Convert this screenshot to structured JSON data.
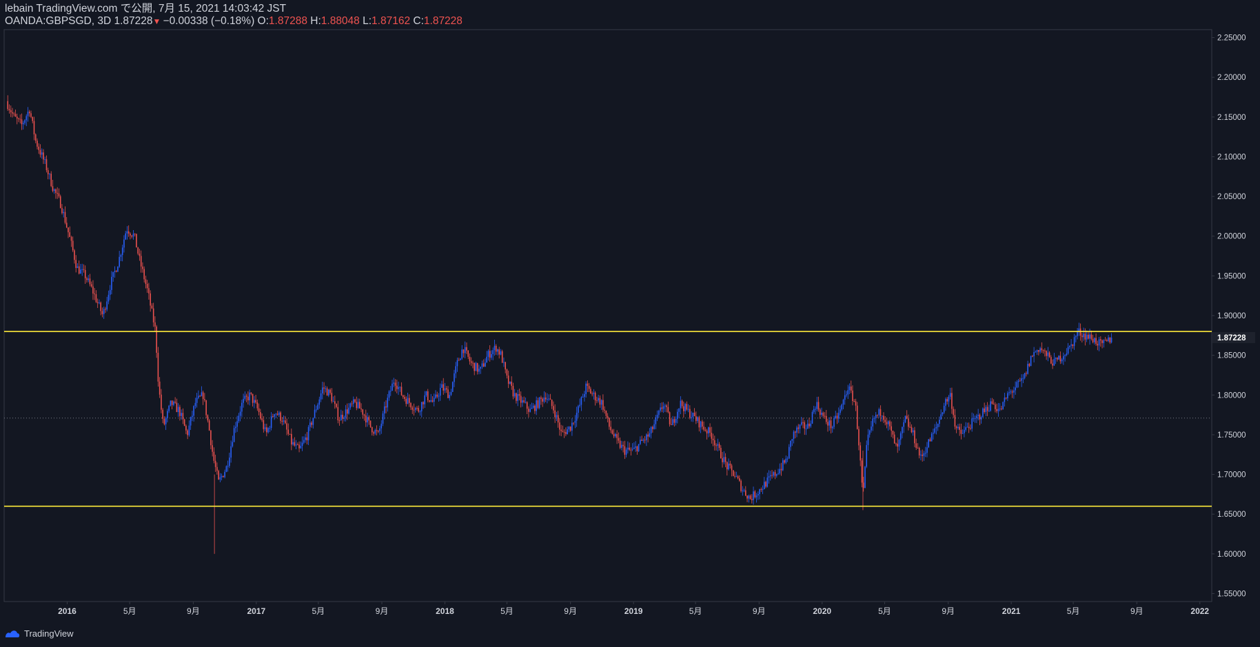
{
  "header": {
    "line1": "lebain TradingView.com で公開, 7月 15, 2021 14:03:42 JST",
    "symbol": "OANDA:GBPSGD, 3D 1.87228",
    "arrow": "▼",
    "change": "−0.00338 (−0.18%)",
    "o_label": "O:",
    "o_value": "1.87288",
    "h_label": "H:",
    "h_value": "1.88048",
    "l_label": "L:",
    "l_value": "1.87162",
    "c_label": "C:",
    "c_value": "1.87228"
  },
  "footer": {
    "brand": "TradingView"
  },
  "colors": {
    "background": "#131722",
    "up": "#2962ff",
    "down": "#ef5350",
    "hline": "#ffeb3b",
    "grid_text": "#d1d4dc",
    "axis_line": "#363a45"
  },
  "chart_data": {
    "type": "candlestick",
    "symbol": "OANDA:GBPSGD",
    "interval": "3D",
    "last_price": "1.87228",
    "ylim": [
      1.54,
      2.26
    ],
    "xlim": [
      "2015-09-01",
      "2022-01-20"
    ],
    "y_ticks": [
      "2.25000",
      "2.20000",
      "2.15000",
      "2.10000",
      "2.05000",
      "2.00000",
      "1.95000",
      "1.90000",
      "1.85000",
      "1.80000",
      "1.75000",
      "1.70000",
      "1.65000",
      "1.60000",
      "1.55000"
    ],
    "x_ticks": [
      {
        "date": "2016-01-01",
        "label": "2016",
        "bold": true
      },
      {
        "date": "2016-05-01",
        "label": "5月",
        "bold": false
      },
      {
        "date": "2016-09-01",
        "label": "9月",
        "bold": false
      },
      {
        "date": "2017-01-01",
        "label": "2017",
        "bold": true
      },
      {
        "date": "2017-05-01",
        "label": "5月",
        "bold": false
      },
      {
        "date": "2017-09-01",
        "label": "9月",
        "bold": false
      },
      {
        "date": "2018-01-01",
        "label": "2018",
        "bold": true
      },
      {
        "date": "2018-05-01",
        "label": "5月",
        "bold": false
      },
      {
        "date": "2018-09-01",
        "label": "9月",
        "bold": false
      },
      {
        "date": "2019-01-01",
        "label": "2019",
        "bold": true
      },
      {
        "date": "2019-05-01",
        "label": "5月",
        "bold": false
      },
      {
        "date": "2019-09-01",
        "label": "9月",
        "bold": false
      },
      {
        "date": "2020-01-01",
        "label": "2020",
        "bold": true
      },
      {
        "date": "2020-05-01",
        "label": "5月",
        "bold": false
      },
      {
        "date": "2020-09-01",
        "label": "9月",
        "bold": false
      },
      {
        "date": "2021-01-01",
        "label": "2021",
        "bold": true
      },
      {
        "date": "2021-05-01",
        "label": "5月",
        "bold": false
      },
      {
        "date": "2021-09-01",
        "label": "9月",
        "bold": false
      },
      {
        "date": "2022-01-01",
        "label": "2022",
        "bold": true
      }
    ],
    "horizontal_lines": [
      1.88,
      1.66
    ],
    "dotted_line": 1.771,
    "close_path": [
      [
        "2015-09-05",
        2.17
      ],
      [
        "2015-09-20",
        2.15
      ],
      [
        "2015-10-05",
        2.14
      ],
      [
        "2015-10-20",
        2.16
      ],
      [
        "2015-11-01",
        2.12
      ],
      [
        "2015-11-20",
        2.09
      ],
      [
        "2015-12-05",
        2.06
      ],
      [
        "2015-12-20",
        2.04
      ],
      [
        "2016-01-05",
        2.0
      ],
      [
        "2016-01-20",
        1.96
      ],
      [
        "2016-02-05",
        1.95
      ],
      [
        "2016-02-20",
        1.93
      ],
      [
        "2016-03-10",
        1.9
      ],
      [
        "2016-03-25",
        1.94
      ],
      [
        "2016-04-10",
        1.97
      ],
      [
        "2016-04-25",
        2.01
      ],
      [
        "2016-05-10",
        2.0
      ],
      [
        "2016-05-20",
        1.97
      ],
      [
        "2016-06-05",
        1.93
      ],
      [
        "2016-06-20",
        1.88
      ],
      [
        "2016-06-26",
        1.81
      ],
      [
        "2016-07-05",
        1.76
      ],
      [
        "2016-07-20",
        1.79
      ],
      [
        "2016-08-05",
        1.78
      ],
      [
        "2016-08-20",
        1.75
      ],
      [
        "2016-09-05",
        1.79
      ],
      [
        "2016-09-20",
        1.8
      ],
      [
        "2016-10-01",
        1.76
      ],
      [
        "2016-10-10",
        1.72
      ],
      [
        "2016-10-20",
        1.69
      ],
      [
        "2016-11-05",
        1.71
      ],
      [
        "2016-11-20",
        1.76
      ],
      [
        "2016-12-05",
        1.79
      ],
      [
        "2016-12-20",
        1.8
      ],
      [
        "2017-01-05",
        1.78
      ],
      [
        "2017-01-20",
        1.75
      ],
      [
        "2017-02-05",
        1.78
      ],
      [
        "2017-02-20",
        1.77
      ],
      [
        "2017-03-10",
        1.74
      ],
      [
        "2017-03-25",
        1.73
      ],
      [
        "2017-04-10",
        1.75
      ],
      [
        "2017-04-25",
        1.78
      ],
      [
        "2017-05-10",
        1.81
      ],
      [
        "2017-05-25",
        1.8
      ],
      [
        "2017-06-10",
        1.77
      ],
      [
        "2017-06-25",
        1.78
      ],
      [
        "2017-07-10",
        1.79
      ],
      [
        "2017-07-25",
        1.78
      ],
      [
        "2017-08-10",
        1.76
      ],
      [
        "2017-08-25",
        1.75
      ],
      [
        "2017-09-10",
        1.79
      ],
      [
        "2017-09-25",
        1.82
      ],
      [
        "2017-10-10",
        1.8
      ],
      [
        "2017-10-25",
        1.79
      ],
      [
        "2017-11-10",
        1.78
      ],
      [
        "2017-11-25",
        1.8
      ],
      [
        "2017-12-10",
        1.79
      ],
      [
        "2017-12-25",
        1.81
      ],
      [
        "2018-01-10",
        1.8
      ],
      [
        "2018-01-25",
        1.84
      ],
      [
        "2018-02-05",
        1.86
      ],
      [
        "2018-02-20",
        1.84
      ],
      [
        "2018-03-10",
        1.83
      ],
      [
        "2018-03-25",
        1.85
      ],
      [
        "2018-04-10",
        1.86
      ],
      [
        "2018-04-20",
        1.85
      ],
      [
        "2018-05-01",
        1.82
      ],
      [
        "2018-05-15",
        1.8
      ],
      [
        "2018-06-01",
        1.79
      ],
      [
        "2018-06-15",
        1.78
      ],
      [
        "2018-07-01",
        1.79
      ],
      [
        "2018-07-15",
        1.8
      ],
      [
        "2018-08-01",
        1.78
      ],
      [
        "2018-08-15",
        1.75
      ],
      [
        "2018-09-01",
        1.76
      ],
      [
        "2018-09-15",
        1.78
      ],
      [
        "2018-10-01",
        1.81
      ],
      [
        "2018-10-15",
        1.8
      ],
      [
        "2018-11-01",
        1.79
      ],
      [
        "2018-11-15",
        1.76
      ],
      [
        "2018-12-01",
        1.74
      ],
      [
        "2018-12-15",
        1.73
      ],
      [
        "2019-01-01",
        1.73
      ],
      [
        "2019-01-15",
        1.74
      ],
      [
        "2019-02-01",
        1.75
      ],
      [
        "2019-02-15",
        1.77
      ],
      [
        "2019-03-01",
        1.79
      ],
      [
        "2019-03-15",
        1.76
      ],
      [
        "2019-04-01",
        1.79
      ],
      [
        "2019-04-15",
        1.78
      ],
      [
        "2019-05-01",
        1.77
      ],
      [
        "2019-05-15",
        1.76
      ],
      [
        "2019-06-01",
        1.75
      ],
      [
        "2019-06-15",
        1.73
      ],
      [
        "2019-07-01",
        1.71
      ],
      [
        "2019-07-15",
        1.7
      ],
      [
        "2019-08-01",
        1.68
      ],
      [
        "2019-08-15",
        1.67
      ],
      [
        "2019-09-01",
        1.68
      ],
      [
        "2019-09-15",
        1.69
      ],
      [
        "2019-10-01",
        1.7
      ],
      [
        "2019-10-15",
        1.71
      ],
      [
        "2019-10-25",
        1.72
      ],
      [
        "2019-11-05",
        1.75
      ],
      [
        "2019-11-20",
        1.76
      ],
      [
        "2019-12-05",
        1.76
      ],
      [
        "2019-12-20",
        1.79
      ],
      [
        "2020-01-05",
        1.77
      ],
      [
        "2020-01-20",
        1.76
      ],
      [
        "2020-02-05",
        1.78
      ],
      [
        "2020-02-20",
        1.81
      ],
      [
        "2020-03-05",
        1.79
      ],
      [
        "2020-03-12",
        1.74
      ],
      [
        "2020-03-20",
        1.67
      ],
      [
        "2020-03-28",
        1.74
      ],
      [
        "2020-04-10",
        1.77
      ],
      [
        "2020-04-25",
        1.78
      ],
      [
        "2020-05-10",
        1.76
      ],
      [
        "2020-05-25",
        1.73
      ],
      [
        "2020-06-10",
        1.77
      ],
      [
        "2020-06-25",
        1.75
      ],
      [
        "2020-07-10",
        1.72
      ],
      [
        "2020-07-25",
        1.74
      ],
      [
        "2020-08-10",
        1.76
      ],
      [
        "2020-08-25",
        1.79
      ],
      [
        "2020-09-05",
        1.8
      ],
      [
        "2020-09-15",
        1.76
      ],
      [
        "2020-09-25",
        1.75
      ],
      [
        "2020-10-10",
        1.76
      ],
      [
        "2020-10-25",
        1.77
      ],
      [
        "2020-11-10",
        1.78
      ],
      [
        "2020-11-25",
        1.79
      ],
      [
        "2020-12-10",
        1.78
      ],
      [
        "2020-12-25",
        1.8
      ],
      [
        "2021-01-10",
        1.81
      ],
      [
        "2021-01-25",
        1.82
      ],
      [
        "2021-02-10",
        1.85
      ],
      [
        "2021-02-25",
        1.86
      ],
      [
        "2021-03-10",
        1.85
      ],
      [
        "2021-03-25",
        1.84
      ],
      [
        "2021-04-10",
        1.85
      ],
      [
        "2021-04-25",
        1.86
      ],
      [
        "2021-05-10",
        1.88
      ],
      [
        "2021-05-25",
        1.875
      ],
      [
        "2021-06-10",
        1.87
      ],
      [
        "2021-06-25",
        1.862
      ],
      [
        "2021-07-15",
        1.872
      ]
    ]
  }
}
